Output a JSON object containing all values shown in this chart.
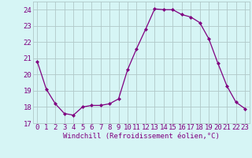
{
  "x": [
    0,
    1,
    2,
    3,
    4,
    5,
    6,
    7,
    8,
    9,
    10,
    11,
    12,
    13,
    14,
    15,
    16,
    17,
    18,
    19,
    20,
    21,
    22,
    23
  ],
  "y": [
    20.8,
    19.1,
    18.2,
    17.6,
    17.5,
    18.0,
    18.1,
    18.1,
    18.2,
    18.5,
    20.3,
    21.6,
    22.8,
    24.05,
    24.0,
    24.0,
    23.7,
    23.55,
    23.2,
    22.2,
    20.7,
    19.3,
    18.3,
    17.9
  ],
  "line_color": "#800080",
  "marker": "D",
  "marker_size": 2.0,
  "bg_color": "#d6f5f5",
  "grid_color": "#b0c8c8",
  "xlabel": "Windchill (Refroidissement éolien,°C)",
  "ylim": [
    17,
    24.5
  ],
  "xlim": [
    -0.5,
    23.5
  ],
  "yticks": [
    17,
    18,
    19,
    20,
    21,
    22,
    23,
    24
  ],
  "xticks": [
    0,
    1,
    2,
    3,
    4,
    5,
    6,
    7,
    8,
    9,
    10,
    11,
    12,
    13,
    14,
    15,
    16,
    17,
    18,
    19,
    20,
    21,
    22,
    23
  ],
  "tick_label_color": "#800080",
  "xlabel_fontsize": 6.5,
  "tick_fontsize": 6.5,
  "line_width": 0.9
}
